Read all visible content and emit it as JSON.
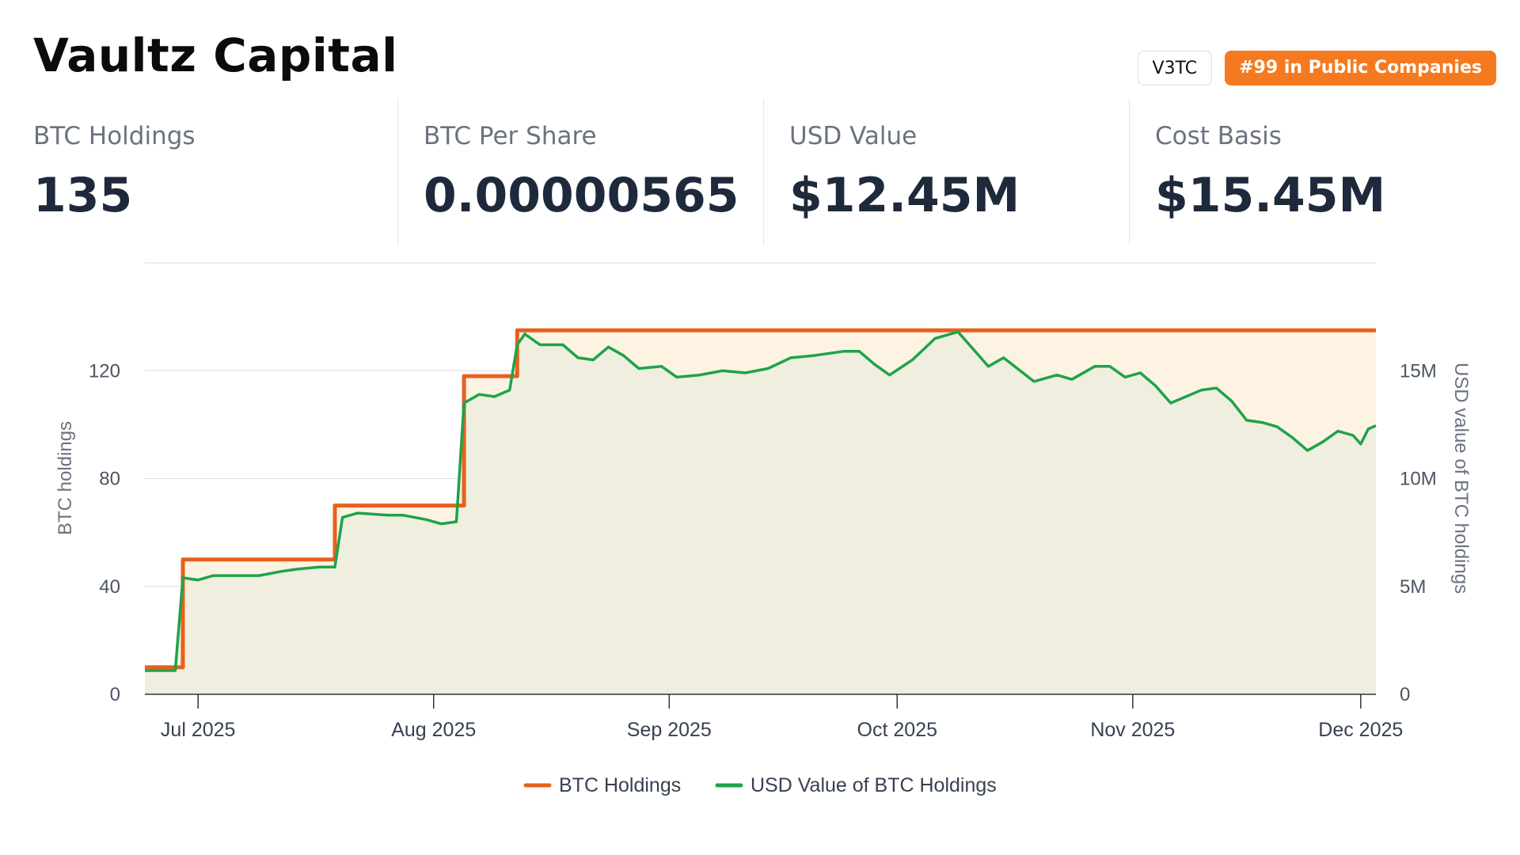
{
  "company": {
    "name": "Vaultz Capital",
    "ticker": "V3TC",
    "rank_badge": "#99 in Public Companies",
    "rank_color": "#f57a1f"
  },
  "stats": [
    {
      "label": "BTC Holdings",
      "value": "135"
    },
    {
      "label": "BTC Per Share",
      "value": "0.00000565"
    },
    {
      "label": "USD Value",
      "value": "$12.45M"
    },
    {
      "label": "Cost Basis",
      "value": "$15.45M"
    }
  ],
  "chart_data": {
    "type": "line",
    "x_ticks": [
      "Jul 2025",
      "Aug 2025",
      "Sep 2025",
      "Oct 2025",
      "Nov 2025",
      "Dec 2025"
    ],
    "x_tick_dates": [
      "2025-07-01",
      "2025-08-01",
      "2025-09-01",
      "2025-10-01",
      "2025-11-01",
      "2025-12-01"
    ],
    "xlim": [
      "2025-06-24",
      "2025-12-03"
    ],
    "y_left": {
      "label": "BTC holdings",
      "ticks": [
        "0",
        "40",
        "80",
        "120"
      ],
      "tick_values": [
        0,
        40,
        80,
        120
      ],
      "lim": [
        0,
        160
      ]
    },
    "y_right": {
      "label": "USD value of BTC holdings",
      "ticks": [
        "0",
        "5M",
        "10M",
        "15M"
      ],
      "tick_values": [
        0,
        5000000,
        10000000,
        15000000
      ],
      "lim": [
        0,
        20000000
      ]
    },
    "grid": true,
    "legend_position": "bottom-center",
    "series": [
      {
        "name": "BTC Holdings",
        "axis": "left",
        "color": "#e8601c",
        "fill": "#fdf3e3",
        "step": true,
        "points": [
          [
            "2025-06-24",
            10
          ],
          [
            "2025-06-29",
            50
          ],
          [
            "2025-07-19",
            70
          ],
          [
            "2025-08-05",
            118
          ],
          [
            "2025-08-12",
            135
          ],
          [
            "2025-12-03",
            135
          ]
        ]
      },
      {
        "name": "USD Value of BTC Holdings",
        "axis": "right",
        "color": "#1ea34a",
        "fill": "#f0efdf",
        "step": false,
        "points": [
          [
            "2025-06-24",
            1100000
          ],
          [
            "2025-06-28",
            1100000
          ],
          [
            "2025-06-29",
            5400000
          ],
          [
            "2025-07-01",
            5300000
          ],
          [
            "2025-07-03",
            5500000
          ],
          [
            "2025-07-06",
            5500000
          ],
          [
            "2025-07-09",
            5500000
          ],
          [
            "2025-07-12",
            5700000
          ],
          [
            "2025-07-14",
            5800000
          ],
          [
            "2025-07-17",
            5900000
          ],
          [
            "2025-07-19",
            5900000
          ],
          [
            "2025-07-20",
            8200000
          ],
          [
            "2025-07-22",
            8400000
          ],
          [
            "2025-07-26",
            8300000
          ],
          [
            "2025-07-28",
            8300000
          ],
          [
            "2025-07-31",
            8100000
          ],
          [
            "2025-08-02",
            7900000
          ],
          [
            "2025-08-04",
            8000000
          ],
          [
            "2025-08-05",
            13500000
          ],
          [
            "2025-08-07",
            13900000
          ],
          [
            "2025-08-09",
            13800000
          ],
          [
            "2025-08-11",
            14100000
          ],
          [
            "2025-08-12",
            16200000
          ],
          [
            "2025-08-13",
            16700000
          ],
          [
            "2025-08-15",
            16200000
          ],
          [
            "2025-08-18",
            16200000
          ],
          [
            "2025-08-20",
            15600000
          ],
          [
            "2025-08-22",
            15500000
          ],
          [
            "2025-08-24",
            16100000
          ],
          [
            "2025-08-26",
            15700000
          ],
          [
            "2025-08-28",
            15100000
          ],
          [
            "2025-08-31",
            15200000
          ],
          [
            "2025-09-02",
            14700000
          ],
          [
            "2025-09-05",
            14800000
          ],
          [
            "2025-09-08",
            15000000
          ],
          [
            "2025-09-11",
            14900000
          ],
          [
            "2025-09-14",
            15100000
          ],
          [
            "2025-09-17",
            15600000
          ],
          [
            "2025-09-20",
            15700000
          ],
          [
            "2025-09-24",
            15900000
          ],
          [
            "2025-09-26",
            15900000
          ],
          [
            "2025-09-28",
            15300000
          ],
          [
            "2025-09-30",
            14800000
          ],
          [
            "2025-10-03",
            15500000
          ],
          [
            "2025-10-06",
            16500000
          ],
          [
            "2025-10-09",
            16800000
          ],
          [
            "2025-10-12",
            15600000
          ],
          [
            "2025-10-13",
            15200000
          ],
          [
            "2025-10-15",
            15600000
          ],
          [
            "2025-10-19",
            14500000
          ],
          [
            "2025-10-22",
            14800000
          ],
          [
            "2025-10-24",
            14600000
          ],
          [
            "2025-10-27",
            15200000
          ],
          [
            "2025-10-29",
            15200000
          ],
          [
            "2025-10-31",
            14700000
          ],
          [
            "2025-11-02",
            14900000
          ],
          [
            "2025-11-04",
            14300000
          ],
          [
            "2025-11-06",
            13500000
          ],
          [
            "2025-11-08",
            13800000
          ],
          [
            "2025-11-10",
            14100000
          ],
          [
            "2025-11-12",
            14200000
          ],
          [
            "2025-11-14",
            13600000
          ],
          [
            "2025-11-16",
            12700000
          ],
          [
            "2025-11-18",
            12600000
          ],
          [
            "2025-11-20",
            12400000
          ],
          [
            "2025-11-22",
            11900000
          ],
          [
            "2025-11-24",
            11300000
          ],
          [
            "2025-11-26",
            11700000
          ],
          [
            "2025-11-28",
            12200000
          ],
          [
            "2025-11-30",
            12000000
          ],
          [
            "2025-12-01",
            11600000
          ],
          [
            "2025-12-02",
            12300000
          ],
          [
            "2025-12-03",
            12450000
          ]
        ]
      }
    ]
  }
}
